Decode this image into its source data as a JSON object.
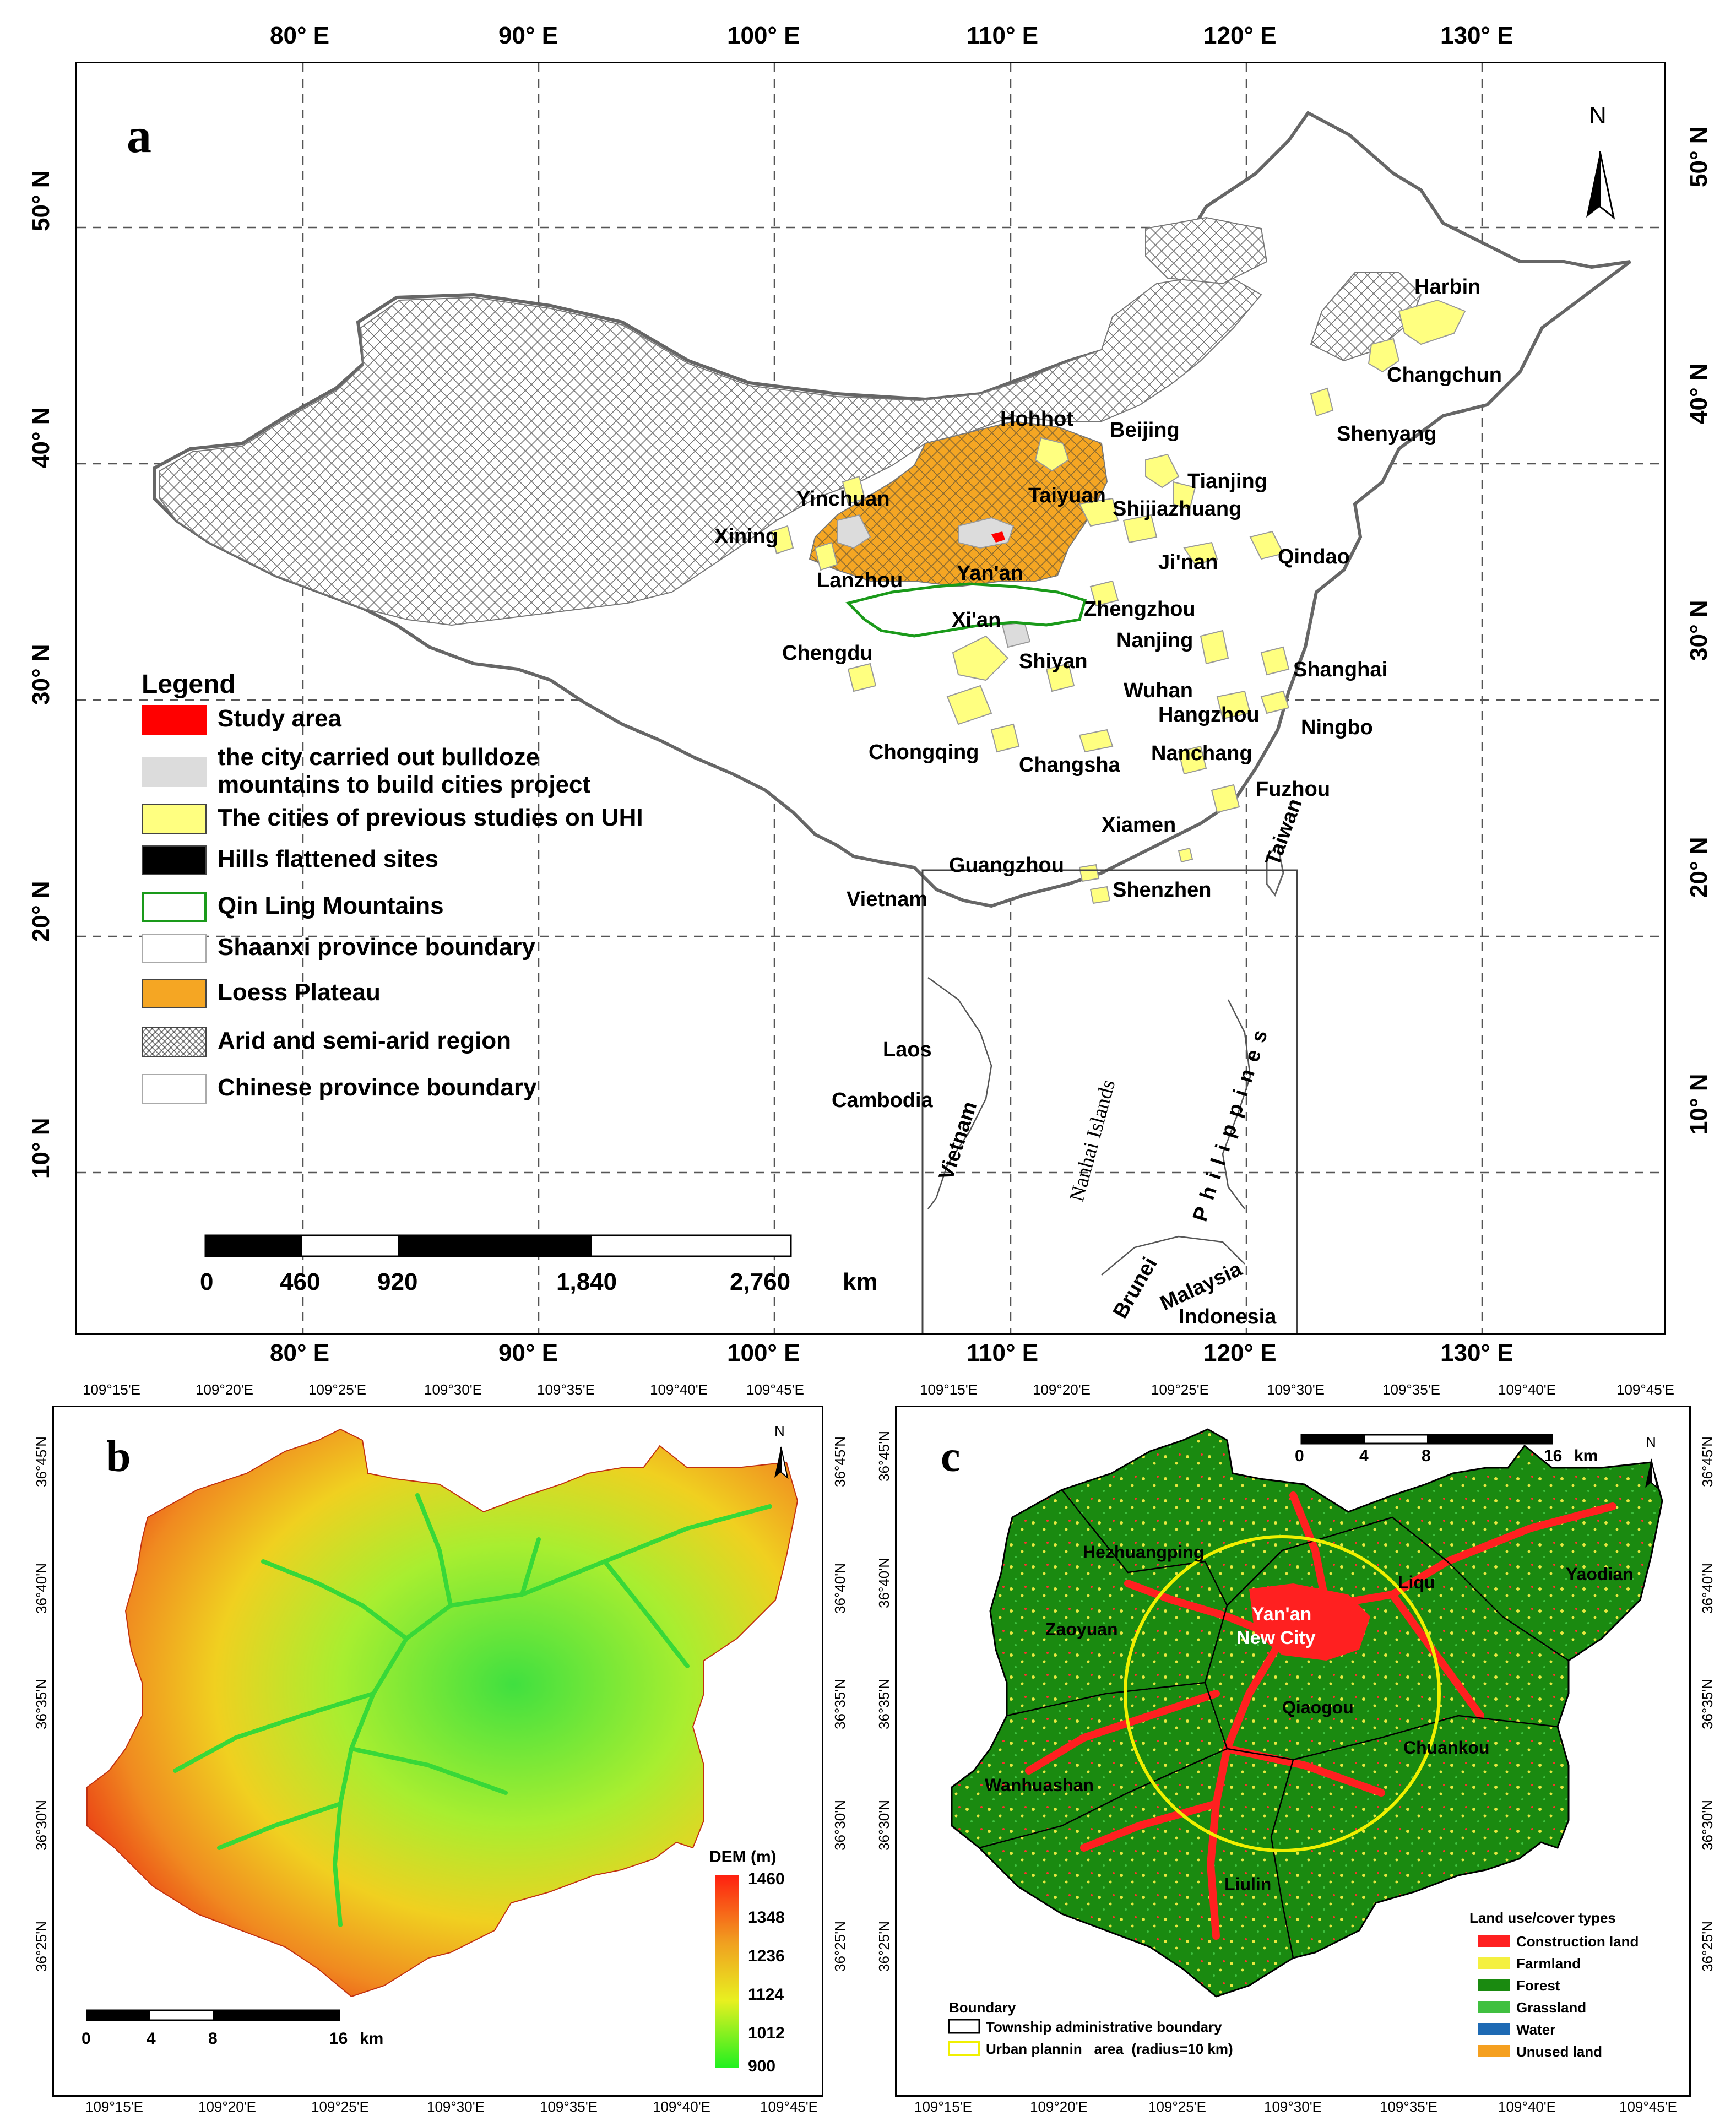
{
  "panel_a": {
    "label": "a",
    "lon_labels_top": [
      "80° E",
      "90° E",
      "100° E",
      "110° E",
      "120° E",
      "130° E"
    ],
    "lon_labels_bottom": [
      "80° E",
      "90° E",
      "100° E",
      "110° E",
      "120° E",
      "130° E"
    ],
    "lat_labels": [
      "50° N",
      "40° N",
      "30° N",
      "20° N",
      "10° N"
    ],
    "north": "N",
    "cities": {
      "harbin": "Harbin",
      "changchun": "Changchun",
      "shenyang": "Shenyang",
      "hohhot": "Hohhot",
      "beijing": "Beijing",
      "tianjing": "Tianjing",
      "shijiazhuang": "Shijiazhuang",
      "taiyuan": "Taiyuan",
      "yinchuan": "Yinchuan",
      "xining": "Xining",
      "lanzhou": "Lanzhou",
      "yanan": "Yan'an",
      "jinan": "Ji'nan",
      "qindao": "Qindao",
      "zhengzhou": "Zhengzhou",
      "xian": "Xi'an",
      "chengdu": "Chengdu",
      "shiyan": "Shiyan",
      "nanjing": "Nanjing",
      "shanghai": "Shanghai",
      "wuhan": "Wuhan",
      "hangzhou": "Hangzhou",
      "ningbo": "Ningbo",
      "chongqing": "Chongqing",
      "changsha": "Changsha",
      "nanchang": "Nanchang",
      "fuzhou": "Fuzhou",
      "xiamen": "Xiamen",
      "taiwan": "Taiwan",
      "guangzhou": "Guangzhou",
      "shenzhen": "Shenzhen",
      "vietnam": "Vietnam",
      "laos": "Laos",
      "cambodia": "Cambodia",
      "vietnam2": "Vietnam",
      "nanhai": "Nanhai Islands",
      "philippines": "Philippines",
      "brunei": "Brunei",
      "malaysia": "Malaysia",
      "indonesia": "Indonesia"
    },
    "legend": {
      "title": "Legend",
      "items": [
        {
          "label": "Study area",
          "color": "#ff0000"
        },
        {
          "label": "the city carried out bulldoze",
          "label2": "mountains to build cities project",
          "color": "#dcdcdc"
        },
        {
          "label": "The cities of previous studies on UHI",
          "color": "#ffff80"
        },
        {
          "label": "Hills flattened sites",
          "color": "#000000"
        },
        {
          "label": "Qin Ling Mountains",
          "color": "#ffffff",
          "border": "#1a9a1a"
        },
        {
          "label": "Shaanxi province boundary",
          "color": "#ffffff"
        },
        {
          "label": "Loess Plateau",
          "color": "#f5a623"
        },
        {
          "label": "Arid and semi-arid region",
          "color": "hatch"
        },
        {
          "label": "Chinese province boundary",
          "color": "#ffffff"
        }
      ]
    },
    "scale": {
      "ticks": [
        "0",
        "460",
        "920",
        "1,840",
        "2,760"
      ],
      "unit": "km"
    }
  },
  "panel_b": {
    "label": "b",
    "lon_labels": [
      "109°15'E",
      "109°20'E",
      "109°25'E",
      "109°30'E",
      "109°35'E",
      "109°40'E",
      "109°45'E"
    ],
    "lat_labels": [
      "36°45'N",
      "36°40'N",
      "36°35'N",
      "36°30'N",
      "36°25'N"
    ],
    "north": "N",
    "dem_title": "DEM (m)",
    "dem_ticks": [
      "1460",
      "1348",
      "1236",
      "1124",
      "1012",
      "900"
    ],
    "scale": {
      "ticks": [
        "0",
        "4",
        "8",
        "16"
      ],
      "unit": "km"
    }
  },
  "panel_c": {
    "label": "c",
    "lon_labels": [
      "109°15'E",
      "109°20'E",
      "109°25'E",
      "109°30'E",
      "109°35'E",
      "109°40'E",
      "109°45'E"
    ],
    "lat_labels": [
      "36°45'N",
      "36°40'N",
      "36°35'N",
      "36°30'N",
      "36°25'N"
    ],
    "north": "N",
    "towns": {
      "hezhuangping": "Hezhuangping",
      "liqu": "Liqu",
      "yaodian": "Yaodian",
      "zaoyuan": "Zaoyuan",
      "yanan": "Yan'an",
      "newcity": "New City",
      "qiaogou": "Qiaogou",
      "chuankou": "Chuankou",
      "wanhuashan": "Wanhuashan",
      "liulin": "Liulin"
    },
    "landuse_title": "Land use/cover types",
    "landuse": [
      {
        "label": "Construction land",
        "color": "#ff2020"
      },
      {
        "label": "Farmland",
        "color": "#f4f040"
      },
      {
        "label": "Forest",
        "color": "#1a8a10"
      },
      {
        "label": "Grassland",
        "color": "#40c040"
      },
      {
        "label": "Water",
        "color": "#1e6ab4"
      },
      {
        "label": "Unused land",
        "color": "#f5a020"
      }
    ],
    "boundary_title": "Boundary",
    "boundary_items": [
      {
        "label": "Township administrative boundary",
        "color": "#000000"
      },
      {
        "label": "Urban plannin   area  (radius=10 km)",
        "color": "#f0f000"
      }
    ],
    "scale": {
      "ticks": [
        "0",
        "4",
        "8",
        "16"
      ],
      "unit": "km"
    }
  }
}
